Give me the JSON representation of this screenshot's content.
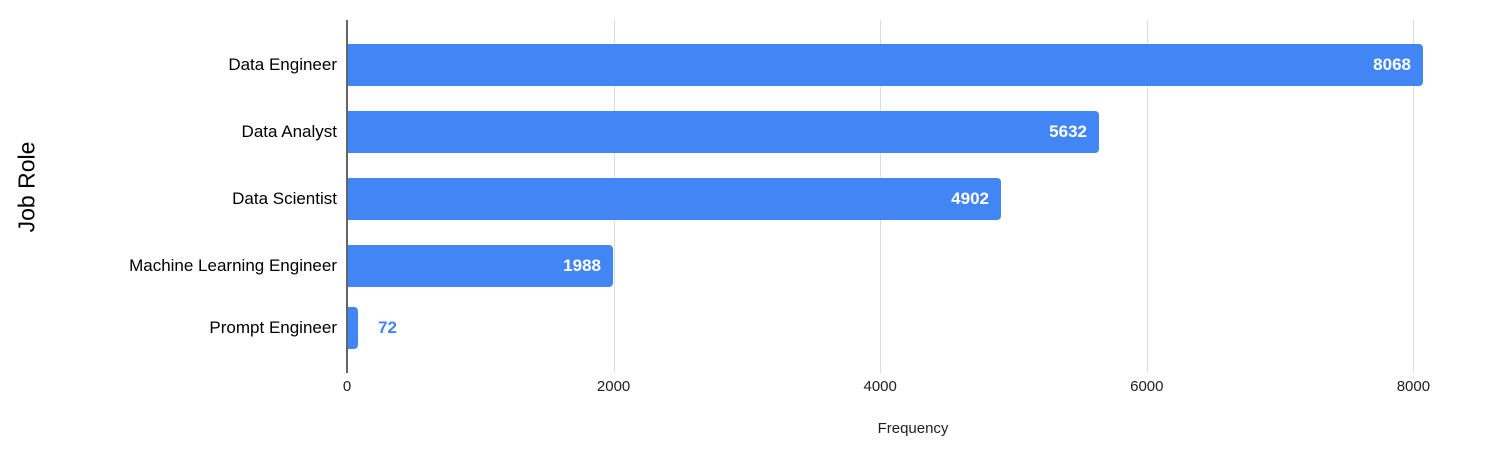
{
  "chart_data": {
    "type": "bar",
    "orientation": "horizontal",
    "title": "",
    "categories": [
      "Data Engineer",
      "Data Analyst",
      "Data Scientist",
      "Machine Learning Engineer",
      "Prompt Engineer"
    ],
    "values": [
      8068,
      5632,
      4902,
      1988,
      72
    ],
    "value_labels": [
      "8068",
      "5632",
      "4902",
      "1988",
      "72"
    ],
    "xlabel": "Frequency",
    "ylabel": "Job Role",
    "xlim": [
      0,
      8500
    ],
    "xticks": [
      0,
      2000,
      4000,
      6000,
      8000
    ],
    "xtick_labels": [
      "0",
      "2000",
      "4000",
      "6000",
      "8000"
    ],
    "grid": true,
    "legend": "none",
    "colors": {
      "bar": "#4285F4",
      "value_label_inside": "#ffffff",
      "value_label_outside": "#4285F4",
      "gridline": "#dadce0",
      "axis_line": "#666666",
      "tick_label": "#202124",
      "category_label": "#000000",
      "axis_title": "#202124",
      "background": "#ffffff"
    }
  }
}
